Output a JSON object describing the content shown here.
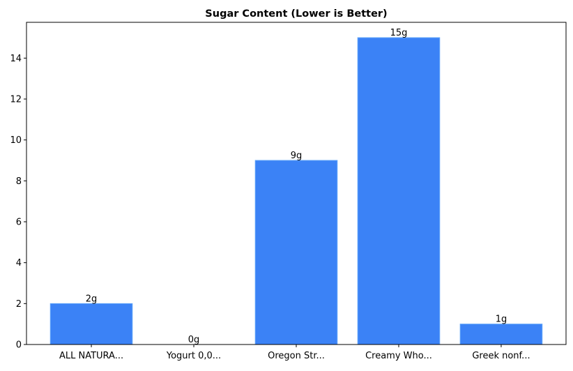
{
  "chart_data": {
    "type": "bar",
    "title": "Sugar Content (Lower is Better)",
    "xlabel": "",
    "ylabel": "",
    "categories": [
      "ALL NATURA...",
      "Yogurt 0,0...",
      "Oregon Str...",
      "Creamy Who...",
      "Greek nonf..."
    ],
    "values": [
      2,
      0,
      9,
      15,
      1
    ],
    "data_labels": [
      "2g",
      "0g",
      "9g",
      "15g",
      "1g"
    ],
    "ylim": [
      0,
      15.75
    ],
    "yticks": [
      0,
      2,
      4,
      6,
      8,
      10,
      12,
      14
    ],
    "grid": false,
    "bar_color": "#3b82f6",
    "bar_edge_color": "#60a5fa"
  }
}
